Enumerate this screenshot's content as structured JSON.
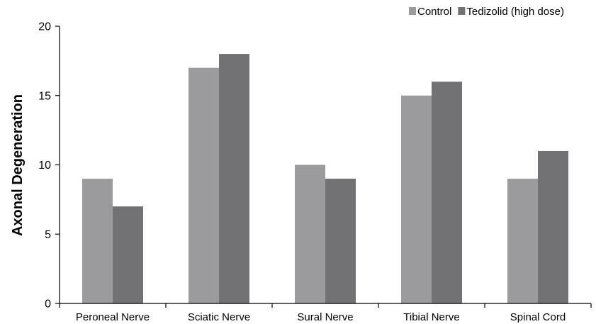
{
  "chart_data": {
    "type": "bar",
    "title": "",
    "xlabel": "",
    "ylabel": "Axonal Degeneration",
    "categories": [
      "Peroneal Nerve",
      "Sciatic Nerve",
      "Sural Nerve",
      "Tibial Nerve",
      "Spinal Cord"
    ],
    "series": [
      {
        "name": "Control",
        "values": [
          9,
          17,
          10,
          15,
          9
        ],
        "color": "#9b9b9e"
      },
      {
        "name": "Tedizolid (high dose)",
        "values": [
          7,
          18,
          9,
          16,
          11
        ],
        "color": "#727275"
      }
    ],
    "ylim": [
      0,
      20
    ],
    "yticks": [
      0,
      5,
      10,
      15,
      20
    ],
    "grid": false,
    "legend_position": "top-right"
  }
}
